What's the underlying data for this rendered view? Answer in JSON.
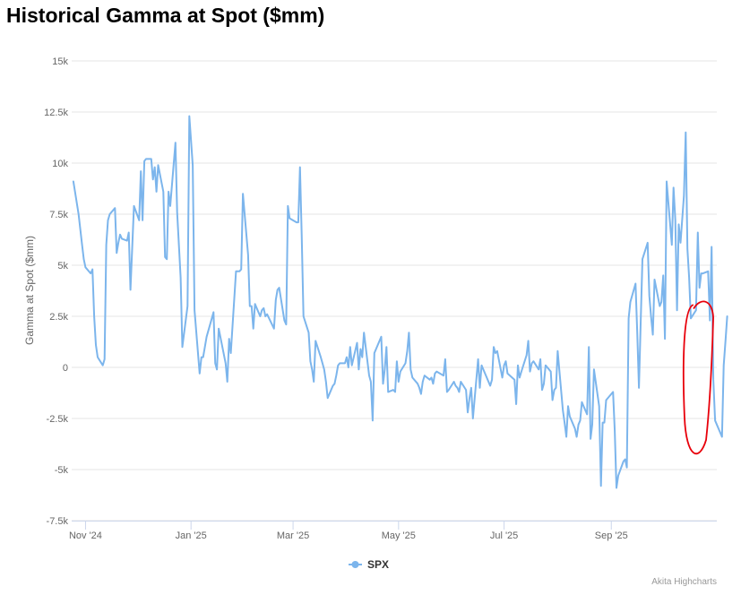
{
  "chart_data": {
    "type": "line",
    "title": "Historical Gamma at Spot ($mm)",
    "ylabel": "Gamma at Spot ($mm)",
    "xlabel": "",
    "ylim": [
      -7500,
      15000
    ],
    "yticks": [
      -7500,
      -5000,
      -2500,
      0,
      2500,
      5000,
      7500,
      10000,
      12500,
      15000
    ],
    "ytick_labels": [
      "-7.5k",
      "-5k",
      "-2.5k",
      "0",
      "2.5k",
      "5k",
      "7.5k",
      "10k",
      "12.5k",
      "15k"
    ],
    "xlim": [
      "2024-10-24",
      "2025-11-01"
    ],
    "xticks": [
      "2024-11-01",
      "2025-01-01",
      "2025-03-01",
      "2025-05-01",
      "2025-07-01",
      "2025-09-01"
    ],
    "xtick_labels": [
      "Nov '24",
      "Jan '25",
      "Mar '25",
      "May '25",
      "Jul '25",
      "Sep '25"
    ],
    "grid": true,
    "legend_position": "bottom-center",
    "credits": "Akita Highcharts",
    "annotation": {
      "type": "hand-drawn-ellipse",
      "color": "#e8000b",
      "x_range": [
        "2025-10-13",
        "2025-10-29"
      ],
      "y_range": [
        -4300,
        3200
      ]
    },
    "series": [
      {
        "name": "SPX",
        "color": "#7cb5ec",
        "points": [
          [
            "2024-10-25",
            9100
          ],
          [
            "2024-10-28",
            7500
          ],
          [
            "2024-10-30",
            6000
          ],
          [
            "2024-10-31",
            5300
          ],
          [
            "2024-11-01",
            4900
          ],
          [
            "2024-11-04",
            4600
          ],
          [
            "2024-11-05",
            4800
          ],
          [
            "2024-11-06",
            2500
          ],
          [
            "2024-11-07",
            1100
          ],
          [
            "2024-11-08",
            500
          ],
          [
            "2024-11-11",
            100
          ],
          [
            "2024-11-12",
            400
          ],
          [
            "2024-11-13",
            6000
          ],
          [
            "2024-11-14",
            7200
          ],
          [
            "2024-11-15",
            7500
          ],
          [
            "2024-11-18",
            7800
          ],
          [
            "2024-11-19",
            5600
          ],
          [
            "2024-11-20",
            6100
          ],
          [
            "2024-11-21",
            6500
          ],
          [
            "2024-11-22",
            6300
          ],
          [
            "2024-11-25",
            6200
          ],
          [
            "2024-11-26",
            6600
          ],
          [
            "2024-11-27",
            3800
          ],
          [
            "2024-11-29",
            7900
          ],
          [
            "2024-12-02",
            7200
          ],
          [
            "2024-12-03",
            9600
          ],
          [
            "2024-12-04",
            7200
          ],
          [
            "2024-12-05",
            10100
          ],
          [
            "2024-12-06",
            10200
          ],
          [
            "2024-12-09",
            10200
          ],
          [
            "2024-12-10",
            9200
          ],
          [
            "2024-12-11",
            9800
          ],
          [
            "2024-12-12",
            8600
          ],
          [
            "2024-12-13",
            9900
          ],
          [
            "2024-12-16",
            8600
          ],
          [
            "2024-12-17",
            5400
          ],
          [
            "2024-12-18",
            5300
          ],
          [
            "2024-12-19",
            8600
          ],
          [
            "2024-12-20",
            7900
          ],
          [
            "2024-12-23",
            11000
          ],
          [
            "2024-12-24",
            7600
          ],
          [
            "2024-12-26",
            4400
          ],
          [
            "2024-12-27",
            1000
          ],
          [
            "2024-12-30",
            3000
          ],
          [
            "2024-12-31",
            12300
          ],
          [
            "2025-01-02",
            9900
          ],
          [
            "2025-01-03",
            2800
          ],
          [
            "2025-01-06",
            -300
          ],
          [
            "2025-01-07",
            500
          ],
          [
            "2025-01-08",
            500
          ],
          [
            "2025-01-10",
            1500
          ],
          [
            "2025-01-13",
            2400
          ],
          [
            "2025-01-14",
            2700
          ],
          [
            "2025-01-15",
            200
          ],
          [
            "2025-01-16",
            -100
          ],
          [
            "2025-01-17",
            1900
          ],
          [
            "2025-01-21",
            200
          ],
          [
            "2025-01-22",
            -700
          ],
          [
            "2025-01-23",
            1400
          ],
          [
            "2025-01-24",
            700
          ],
          [
            "2025-01-27",
            4700
          ],
          [
            "2025-01-28",
            4700
          ],
          [
            "2025-01-29",
            4700
          ],
          [
            "2025-01-30",
            4800
          ],
          [
            "2025-01-31",
            8500
          ],
          [
            "2025-02-03",
            5500
          ],
          [
            "2025-02-04",
            3000
          ],
          [
            "2025-02-05",
            3000
          ],
          [
            "2025-02-06",
            1900
          ],
          [
            "2025-02-07",
            3100
          ],
          [
            "2025-02-10",
            2500
          ],
          [
            "2025-02-11",
            2800
          ],
          [
            "2025-02-12",
            2900
          ],
          [
            "2025-02-13",
            2500
          ],
          [
            "2025-02-14",
            2600
          ],
          [
            "2025-02-18",
            1900
          ],
          [
            "2025-02-19",
            3300
          ],
          [
            "2025-02-20",
            3800
          ],
          [
            "2025-02-21",
            3900
          ],
          [
            "2025-02-24",
            2300
          ],
          [
            "2025-02-25",
            2100
          ],
          [
            "2025-02-26",
            7900
          ],
          [
            "2025-02-27",
            7300
          ],
          [
            "2025-03-03",
            7100
          ],
          [
            "2025-03-04",
            7100
          ],
          [
            "2025-03-05",
            9800
          ],
          [
            "2025-03-06",
            6500
          ],
          [
            "2025-03-07",
            2500
          ],
          [
            "2025-03-10",
            1700
          ],
          [
            "2025-03-11",
            300
          ],
          [
            "2025-03-12",
            -100
          ],
          [
            "2025-03-13",
            -700
          ],
          [
            "2025-03-14",
            1300
          ],
          [
            "2025-03-17",
            500
          ],
          [
            "2025-03-18",
            200
          ],
          [
            "2025-03-19",
            -100
          ],
          [
            "2025-03-20",
            -700
          ],
          [
            "2025-03-21",
            -1500
          ],
          [
            "2025-03-24",
            -900
          ],
          [
            "2025-03-25",
            -800
          ],
          [
            "2025-03-26",
            -400
          ],
          [
            "2025-03-27",
            100
          ],
          [
            "2025-03-28",
            200
          ],
          [
            "2025-03-31",
            200
          ],
          [
            "2025-04-01",
            500
          ],
          [
            "2025-04-02",
            0
          ],
          [
            "2025-04-03",
            1000
          ],
          [
            "2025-04-04",
            100
          ],
          [
            "2025-04-07",
            1200
          ],
          [
            "2025-04-08",
            -100
          ],
          [
            "2025-04-09",
            900
          ],
          [
            "2025-04-10",
            500
          ],
          [
            "2025-04-11",
            1700
          ],
          [
            "2025-04-14",
            -400
          ],
          [
            "2025-04-15",
            -700
          ],
          [
            "2025-04-16",
            -2600
          ],
          [
            "2025-04-17",
            700
          ],
          [
            "2025-04-21",
            1500
          ],
          [
            "2025-04-22",
            -800
          ],
          [
            "2025-04-23",
            -100
          ],
          [
            "2025-04-24",
            1000
          ],
          [
            "2025-04-25",
            -1200
          ],
          [
            "2025-04-28",
            -1100
          ],
          [
            "2025-04-29",
            -1200
          ],
          [
            "2025-04-30",
            300
          ],
          [
            "2025-05-01",
            -700
          ],
          [
            "2025-05-02",
            -200
          ],
          [
            "2025-05-05",
            200
          ],
          [
            "2025-05-06",
            800
          ],
          [
            "2025-05-07",
            1700
          ],
          [
            "2025-05-08",
            -100
          ],
          [
            "2025-05-09",
            -500
          ],
          [
            "2025-05-12",
            -800
          ],
          [
            "2025-05-13",
            -1000
          ],
          [
            "2025-05-14",
            -1300
          ],
          [
            "2025-05-15",
            -700
          ],
          [
            "2025-05-16",
            -400
          ],
          [
            "2025-05-19",
            -600
          ],
          [
            "2025-05-20",
            -500
          ],
          [
            "2025-05-21",
            -800
          ],
          [
            "2025-05-22",
            -300
          ],
          [
            "2025-05-23",
            -200
          ],
          [
            "2025-05-27",
            -400
          ],
          [
            "2025-05-28",
            400
          ],
          [
            "2025-05-29",
            -1200
          ],
          [
            "2025-05-30",
            -1100
          ],
          [
            "2025-06-02",
            -700
          ],
          [
            "2025-06-03",
            -900
          ],
          [
            "2025-06-04",
            -1000
          ],
          [
            "2025-06-05",
            -1200
          ],
          [
            "2025-06-06",
            -700
          ],
          [
            "2025-06-09",
            -1100
          ],
          [
            "2025-06-10",
            -2200
          ],
          [
            "2025-06-11",
            -1500
          ],
          [
            "2025-06-12",
            -1000
          ],
          [
            "2025-06-13",
            -2500
          ],
          [
            "2025-06-16",
            400
          ],
          [
            "2025-06-17",
            -1000
          ],
          [
            "2025-06-18",
            100
          ],
          [
            "2025-06-20",
            -300
          ],
          [
            "2025-06-23",
            -900
          ],
          [
            "2025-06-24",
            -600
          ],
          [
            "2025-06-25",
            1000
          ],
          [
            "2025-06-26",
            700
          ],
          [
            "2025-06-27",
            800
          ],
          [
            "2025-06-30",
            -500
          ],
          [
            "2025-07-01",
            100
          ],
          [
            "2025-07-02",
            300
          ],
          [
            "2025-07-03",
            -300
          ],
          [
            "2025-07-07",
            -600
          ],
          [
            "2025-07-08",
            -1800
          ],
          [
            "2025-07-09",
            100
          ],
          [
            "2025-07-10",
            -500
          ],
          [
            "2025-07-11",
            -200
          ],
          [
            "2025-07-14",
            600
          ],
          [
            "2025-07-15",
            1300
          ],
          [
            "2025-07-16",
            -200
          ],
          [
            "2025-07-17",
            200
          ],
          [
            "2025-07-18",
            300
          ],
          [
            "2025-07-21",
            -100
          ],
          [
            "2025-07-22",
            400
          ],
          [
            "2025-07-23",
            -1100
          ],
          [
            "2025-07-24",
            -800
          ],
          [
            "2025-07-25",
            100
          ],
          [
            "2025-07-28",
            -200
          ],
          [
            "2025-07-29",
            -1600
          ],
          [
            "2025-07-30",
            -1100
          ],
          [
            "2025-07-31",
            -1000
          ],
          [
            "2025-08-01",
            800
          ],
          [
            "2025-08-04",
            -2100
          ],
          [
            "2025-08-05",
            -2700
          ],
          [
            "2025-08-06",
            -3400
          ],
          [
            "2025-08-07",
            -1900
          ],
          [
            "2025-08-08",
            -2400
          ],
          [
            "2025-08-11",
            -3000
          ],
          [
            "2025-08-12",
            -3400
          ],
          [
            "2025-08-13",
            -2800
          ],
          [
            "2025-08-14",
            -2600
          ],
          [
            "2025-08-15",
            -1700
          ],
          [
            "2025-08-18",
            -2300
          ],
          [
            "2025-08-19",
            1000
          ],
          [
            "2025-08-20",
            -3500
          ],
          [
            "2025-08-21",
            -2800
          ],
          [
            "2025-08-22",
            -100
          ],
          [
            "2025-08-25",
            -1900
          ],
          [
            "2025-08-26",
            -5800
          ],
          [
            "2025-08-27",
            -2700
          ],
          [
            "2025-08-28",
            -2700
          ],
          [
            "2025-08-29",
            -1600
          ],
          [
            "2025-09-02",
            -1200
          ],
          [
            "2025-09-03",
            -3100
          ],
          [
            "2025-09-04",
            -5900
          ],
          [
            "2025-09-05",
            -5300
          ],
          [
            "2025-09-08",
            -4600
          ],
          [
            "2025-09-09",
            -4500
          ],
          [
            "2025-09-10",
            -4900
          ],
          [
            "2025-09-11",
            2400
          ],
          [
            "2025-09-12",
            3200
          ],
          [
            "2025-09-15",
            4100
          ],
          [
            "2025-09-16",
            1700
          ],
          [
            "2025-09-17",
            -1000
          ],
          [
            "2025-09-18",
            2300
          ],
          [
            "2025-09-19",
            5300
          ],
          [
            "2025-09-22",
            6100
          ],
          [
            "2025-09-23",
            3500
          ],
          [
            "2025-09-24",
            2500
          ],
          [
            "2025-09-25",
            1600
          ],
          [
            "2025-09-26",
            4300
          ],
          [
            "2025-09-29",
            3000
          ],
          [
            "2025-09-30",
            3200
          ],
          [
            "2025-10-01",
            4500
          ],
          [
            "2025-10-02",
            1400
          ],
          [
            "2025-10-03",
            9100
          ],
          [
            "2025-10-06",
            6000
          ],
          [
            "2025-10-07",
            8800
          ],
          [
            "2025-10-08",
            7200
          ],
          [
            "2025-10-09",
            2800
          ],
          [
            "2025-10-10",
            7000
          ],
          [
            "2025-10-11",
            6100
          ],
          [
            "2025-10-13",
            8400
          ],
          [
            "2025-10-14",
            11500
          ],
          [
            "2025-10-15",
            5800
          ],
          [
            "2025-10-16",
            4400
          ],
          [
            "2025-10-17",
            2400
          ],
          [
            "2025-10-20",
            2800
          ],
          [
            "2025-10-21",
            6600
          ],
          [
            "2025-10-22",
            3900
          ],
          [
            "2025-10-23",
            4600
          ],
          [
            "2025-10-24",
            4600
          ],
          [
            "2025-10-27",
            4700
          ],
          [
            "2025-10-28",
            2300
          ],
          [
            "2025-10-29",
            5900
          ],
          [
            "2025-10-30",
            -600
          ],
          [
            "2025-10-31",
            -2600
          ],
          [
            "2025-11-03",
            -3200
          ],
          [
            "2025-11-04",
            -3400
          ],
          [
            "2025-11-05",
            100
          ],
          [
            "2025-11-06",
            1300
          ],
          [
            "2025-11-07",
            2500
          ]
        ]
      }
    ]
  }
}
